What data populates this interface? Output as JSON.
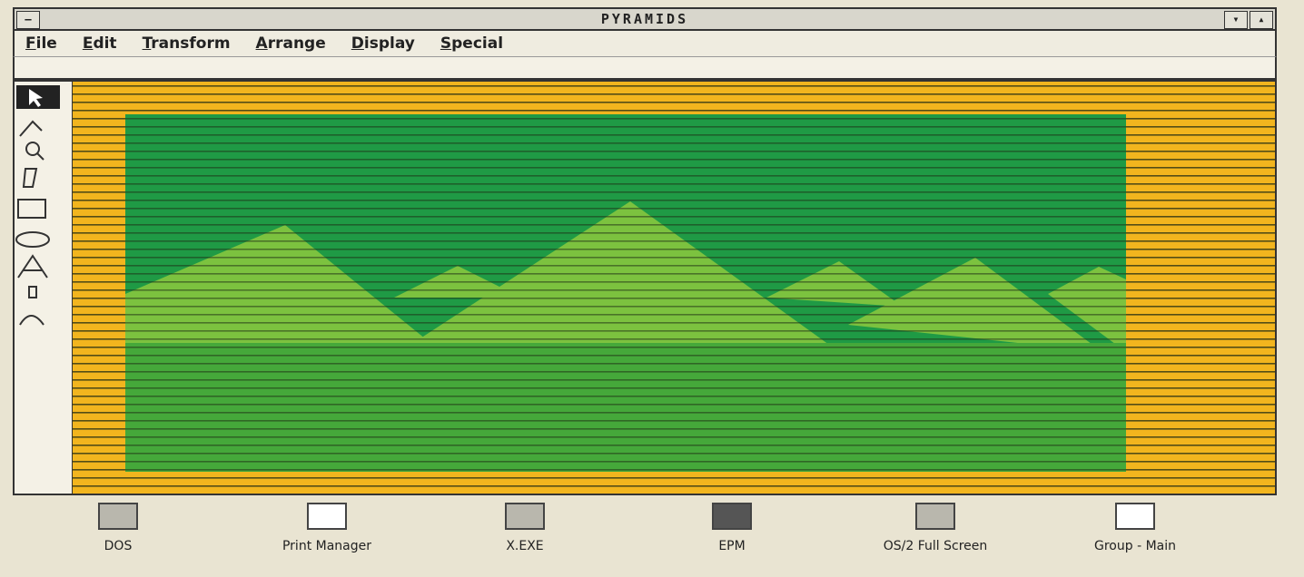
{
  "window": {
    "title": "PYRAMIDS"
  },
  "menu": [
    "File",
    "Edit",
    "Transform",
    "Arrange",
    "Display",
    "Special"
  ],
  "desktop_icons": [
    "DOS",
    "Print Manager",
    "X.EXE",
    "EPM",
    "OS/2 Full Screen",
    "Group - Main"
  ]
}
